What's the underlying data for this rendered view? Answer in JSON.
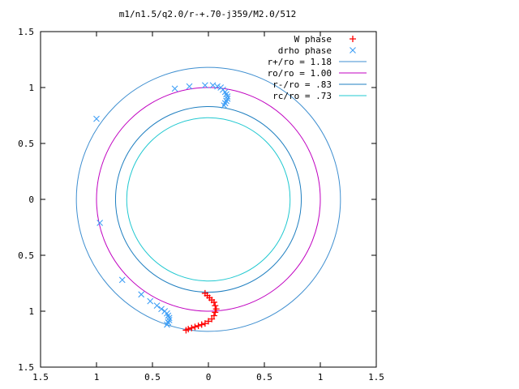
{
  "chart_data": {
    "type": "scatter",
    "title": "m1/n1.5/q2.0/r-+.70-j359/M2.0/512",
    "xlim": [
      -1.5,
      1.5
    ],
    "ylim": [
      -1.5,
      1.5
    ],
    "x_ticks": [
      -1.5,
      -1,
      -0.5,
      0,
      0.5,
      1,
      1.5
    ],
    "y_ticks": [
      -1.5,
      -1,
      -0.5,
      0,
      0.5,
      1,
      1.5
    ],
    "x_tick_labels": [
      "1.5",
      "1",
      "0.5",
      "0",
      "0.5",
      "1",
      "1.5"
    ],
    "y_tick_labels": [
      "1.5",
      "1",
      "0.5",
      "0",
      "0.5",
      "1",
      "1.5"
    ],
    "grid": false,
    "legend_position": "top-right",
    "series": [
      {
        "name": "W phase",
        "marker": "plus",
        "color": "#ff0000",
        "x": [
          -0.03,
          -0.01,
          0.01,
          0.03,
          0.05,
          0.06,
          0.07,
          0.06,
          0.05,
          0.03,
          0.0,
          -0.03,
          -0.06,
          -0.09,
          -0.12,
          -0.15,
          -0.18,
          -0.2
        ],
        "y": [
          -0.84,
          -0.86,
          -0.88,
          -0.9,
          -0.92,
          -0.95,
          -0.98,
          -1.01,
          -1.04,
          -1.07,
          -1.09,
          -1.11,
          -1.12,
          -1.13,
          -1.14,
          -1.15,
          -1.16,
          -1.17
        ]
      },
      {
        "name": "drho phase",
        "marker": "cross",
        "color": "#3f9ff6",
        "x": [
          -0.3,
          -0.17,
          -0.03,
          0.04,
          0.08,
          0.11,
          0.13,
          0.15,
          0.16,
          0.17,
          0.17,
          0.16,
          0.15,
          0.14,
          -1.0,
          -0.97,
          -0.77,
          -0.6,
          -0.52,
          -0.46,
          -0.42,
          -0.39,
          -0.37,
          -0.36,
          -0.35,
          -0.35,
          -0.36,
          -0.37
        ],
        "y": [
          0.99,
          1.01,
          1.02,
          1.02,
          1.01,
          1.0,
          0.98,
          0.96,
          0.94,
          0.92,
          0.9,
          0.88,
          0.86,
          0.84,
          0.72,
          -0.21,
          -0.72,
          -0.85,
          -0.91,
          -0.95,
          -0.98,
          -1.0,
          -1.02,
          -1.04,
          -1.06,
          -1.08,
          -1.1,
          -1.12
        ]
      },
      {
        "name": "r+/ro = 1.18",
        "type": "circle",
        "radius": 1.18,
        "color": "#3f8fd0"
      },
      {
        "name": "ro/ro = 1.00",
        "type": "circle",
        "radius": 1.0,
        "color": "#c000c0"
      },
      {
        "name": "r-/ro = .83",
        "type": "circle",
        "radius": 0.83,
        "color": "#1f7fc0"
      },
      {
        "name": "rc/ro = .73",
        "type": "circle",
        "radius": 0.73,
        "color": "#20c8d0"
      }
    ]
  }
}
